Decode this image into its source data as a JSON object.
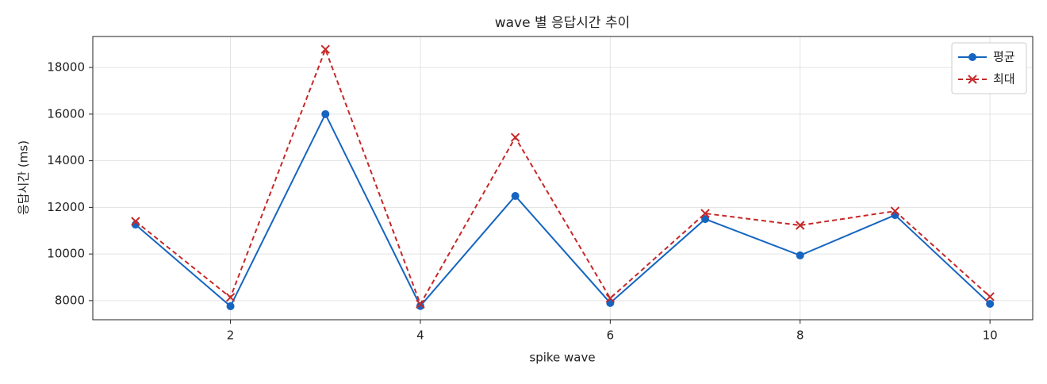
{
  "chart_data": {
    "type": "line",
    "title": "wave 별 응답시간 추이",
    "x_label": "spike wave",
    "y_label": "응답시간 (ms)",
    "x": [
      1,
      2,
      3,
      4,
      5,
      6,
      7,
      8,
      9,
      10
    ],
    "series": [
      {
        "name": "평균",
        "color": "#1565c0",
        "marker": "o",
        "linestyle": "solid",
        "values": [
          11260,
          7760,
          16000,
          7770,
          12490,
          7900,
          11500,
          9940,
          11670,
          7860
        ]
      },
      {
        "name": "최대",
        "color": "#c62828",
        "marker": "x",
        "linestyle": "dashed",
        "values": [
          11400,
          8140,
          18780,
          7850,
          15000,
          8100,
          11740,
          11230,
          11840,
          8170
        ]
      }
    ],
    "xlim": [
      0.55,
      10.45
    ],
    "xticks": [
      2,
      4,
      6,
      8,
      10
    ],
    "ylim": [
      7180,
      19330
    ],
    "yticks": [
      8000,
      10000,
      12000,
      14000,
      16000,
      18000
    ],
    "grid": true,
    "legend": "upper right"
  }
}
